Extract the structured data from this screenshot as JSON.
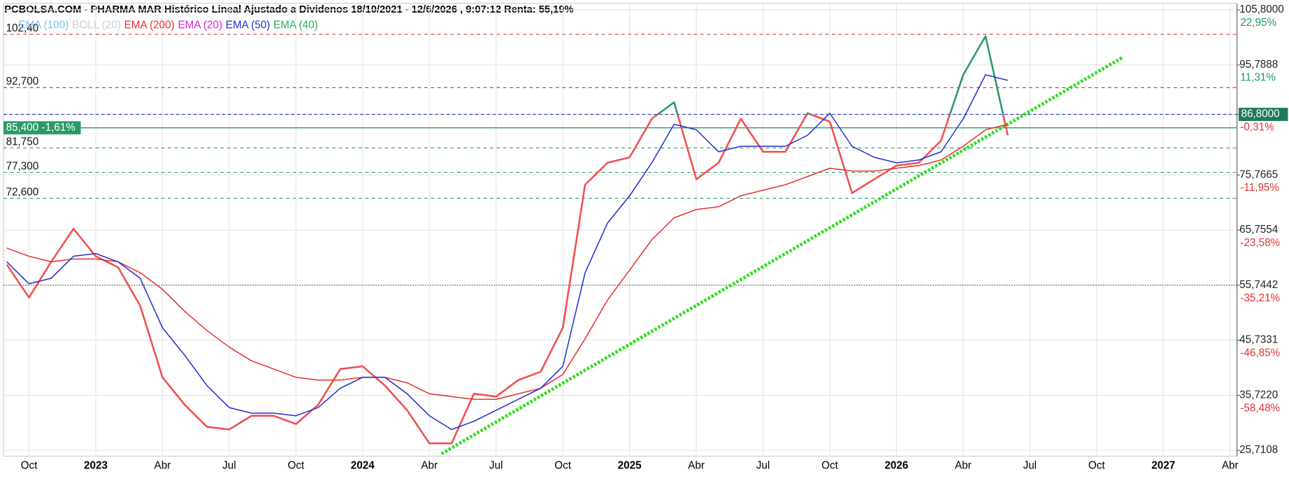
{
  "chart_data": {
    "type": "line",
    "title": "PCBOLSA.COM - PHARMA MAR Histórico Lineal Ajustado a Dividenos 18/10/2021 - 12/6/2026 , 9:07:12 Renta: 55,19%",
    "xticks": [
      "Oct",
      "2023",
      "Abr",
      "Jul",
      "Oct",
      "2024",
      "Abr",
      "Jul",
      "Oct",
      "2025",
      "Abr",
      "Jul",
      "Oct",
      "2026",
      "Abr",
      "Jul",
      "Oct",
      "2027",
      "Abr"
    ],
    "ylim": [
      25.7108,
      105.8
    ],
    "yticks": [
      {
        "value": 105.8,
        "label": "105,8000"
      },
      {
        "value": 95.7888,
        "label": "95,7888"
      },
      {
        "value": 86.8,
        "label": "86,8000"
      },
      {
        "value": 75.7665,
        "label": "75,7665"
      },
      {
        "value": 65.7554,
        "label": "65,7554"
      },
      {
        "value": 55.7442,
        "label": "55,7442"
      },
      {
        "value": 45.7331,
        "label": "45,7331"
      },
      {
        "value": 35.722,
        "label": "35,7220"
      },
      {
        "value": 25.7108,
        "label": "25,7108"
      }
    ],
    "percent_labels": [
      "22,95%",
      "11,31%",
      "-0,31%",
      "-11,95%",
      "-23,58%",
      "-35,21%",
      "-46,85%",
      "-58,48%"
    ],
    "last_price": 86.8,
    "grid": true,
    "legend": [
      {
        "name": "EMA (100)",
        "color": "#7cc4f0"
      },
      {
        "name": "BOLL (20)",
        "color": "#cfcfcf"
      },
      {
        "name": "EMA (200)",
        "color": "#e83030"
      },
      {
        "name": "EMA (20)",
        "color": "#e020e0"
      },
      {
        "name": "EMA (50)",
        "color": "#2030d0"
      },
      {
        "name": "EMA (40)",
        "color": "#20b060"
      }
    ],
    "series": [
      {
        "color": "#f05050",
        "color_above": "#2a9a6a",
        "values": [
          59.5,
          53.5,
          60,
          66,
          61,
          59,
          52,
          39,
          34,
          30,
          29.5,
          32,
          32,
          30.5,
          34,
          40.5,
          41,
          37.5,
          33,
          27,
          27,
          36,
          35.5,
          38.5,
          40,
          48,
          74,
          78,
          79,
          86,
          89,
          75,
          78,
          86,
          80,
          80,
          87,
          85.5,
          72.5,
          75,
          77.5,
          78,
          82,
          94,
          101,
          83
        ]
      },
      {
        "name": "EMA (200)",
        "color": "#e83030",
        "values": [
          62.5,
          61,
          60,
          60.5,
          60.5,
          60,
          58,
          55,
          51,
          47.5,
          44.5,
          42,
          40.5,
          39,
          38.5,
          38.5,
          39,
          39,
          38,
          36,
          35.5,
          35,
          35,
          36,
          37,
          39.5,
          46,
          53,
          58.5,
          64,
          68,
          69.5,
          70,
          72,
          73,
          74,
          75.5,
          77,
          76.5,
          76.5,
          77,
          77.5,
          78.5,
          81,
          84,
          85
        ]
      },
      {
        "name": "EMA (50)",
        "color": "#2030d0",
        "values": [
          60,
          56,
          57,
          61,
          61.5,
          60,
          57,
          48,
          43,
          37.5,
          33.5,
          32.5,
          32.5,
          32,
          33.5,
          37,
          39,
          39,
          36,
          32,
          29.5,
          31,
          33,
          35,
          37,
          41,
          58,
          67,
          72,
          78,
          85,
          84,
          80,
          81,
          81,
          81,
          83,
          87,
          81,
          79,
          78,
          78.5,
          80,
          86,
          94,
          93
        ]
      }
    ],
    "levels": [
      {
        "value": 102.4,
        "label": "102,40",
        "color": "#e83030"
      },
      {
        "value": 92.7,
        "label": "92,700",
        "color": "#e83030"
      },
      {
        "value": 81.75,
        "label": "81,750",
        "color": "#2a9a6a"
      },
      {
        "value": 77.3,
        "label": "77,300",
        "color": "#2a9a6a"
      },
      {
        "value": 72.6,
        "label": "72,600",
        "color": "#2a9a6a"
      }
    ],
    "current": {
      "value": 85.4,
      "label": "85,400 -1,61%",
      "color": "#2a9a6a"
    },
    "reference_line": {
      "value": 55.7442,
      "color": "#222222"
    },
    "trendline": {
      "color": "#33dd22",
      "values": [
        25.1,
        97.1
      ]
    }
  }
}
